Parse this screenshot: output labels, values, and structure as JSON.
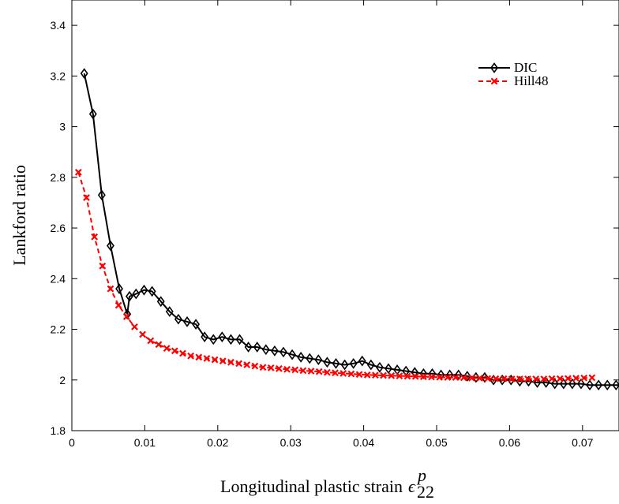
{
  "chart_data": {
    "type": "line",
    "xlabel": "Longitudinal plastic strain",
    "xlabel_symbol": "ϵ",
    "xlabel_superscript": "p",
    "xlabel_subscript": "22",
    "ylabel": "Lankford ratio",
    "xlim": [
      0,
      0.075
    ],
    "ylim": [
      1.8,
      3.5
    ],
    "x_ticks": [
      0,
      0.01,
      0.02,
      0.03,
      0.04,
      0.05,
      0.06,
      0.07
    ],
    "x_tick_labels": [
      "0",
      "0.01",
      "0.02",
      "0.03",
      "0.04",
      "0.05",
      "0.06",
      "0.07"
    ],
    "y_ticks": [
      1.8,
      2.0,
      2.2,
      2.4,
      2.6,
      2.8,
      3.0,
      3.2,
      3.4
    ],
    "y_tick_labels": [
      "1.8",
      "2",
      "2.2",
      "2.4",
      "2.6",
      "2.8",
      "3",
      "3.2",
      "3.4"
    ],
    "grid": false,
    "legend_position": "top-right",
    "series": [
      {
        "name": "DIC",
        "color": "#000000",
        "line_style": "solid",
        "marker": "diamond",
        "x": [
          0.0017,
          0.0029,
          0.0041,
          0.0053,
          0.0065,
          0.0076,
          0.0079,
          0.0088,
          0.0099,
          0.011,
          0.0122,
          0.0134,
          0.0146,
          0.0158,
          0.017,
          0.0182,
          0.0194,
          0.0206,
          0.0218,
          0.023,
          0.0242,
          0.0254,
          0.0266,
          0.0278,
          0.029,
          0.0302,
          0.0314,
          0.0326,
          0.0338,
          0.035,
          0.0362,
          0.0374,
          0.0386,
          0.0398,
          0.041,
          0.0422,
          0.0434,
          0.0446,
          0.0458,
          0.047,
          0.0482,
          0.0494,
          0.0506,
          0.0518,
          0.053,
          0.0542,
          0.0554,
          0.0566,
          0.0578,
          0.059,
          0.0602,
          0.0614,
          0.0626,
          0.0638,
          0.065,
          0.0662,
          0.0674,
          0.0686,
          0.0698,
          0.071,
          0.0722,
          0.0734,
          0.0746,
          0.0755
        ],
        "y": [
          3.21,
          3.05,
          2.73,
          2.53,
          2.36,
          2.26,
          2.33,
          2.34,
          2.355,
          2.35,
          2.31,
          2.27,
          2.24,
          2.23,
          2.22,
          2.17,
          2.16,
          2.17,
          2.16,
          2.16,
          2.13,
          2.13,
          2.12,
          2.115,
          2.11,
          2.1,
          2.09,
          2.085,
          2.08,
          2.07,
          2.065,
          2.06,
          2.065,
          2.075,
          2.06,
          2.05,
          2.045,
          2.04,
          2.035,
          2.03,
          2.025,
          2.025,
          2.02,
          2.02,
          2.02,
          2.015,
          2.01,
          2.01,
          2.0,
          2.0,
          2.0,
          1.995,
          1.995,
          1.99,
          1.99,
          1.985,
          1.985,
          1.985,
          1.985,
          1.98,
          1.98,
          1.98,
          1.98,
          1.98
        ]
      },
      {
        "name": "Hill48",
        "color": "#ff0000",
        "line_style": "dashed",
        "marker": "x",
        "x": [
          0.0009,
          0.002,
          0.0031,
          0.0042,
          0.0053,
          0.0064,
          0.0075,
          0.0086,
          0.0097,
          0.0108,
          0.0119,
          0.013,
          0.0141,
          0.0152,
          0.0163,
          0.0174,
          0.0185,
          0.0196,
          0.0207,
          0.0218,
          0.0229,
          0.024,
          0.0251,
          0.0262,
          0.0273,
          0.0284,
          0.0295,
          0.0306,
          0.0317,
          0.0328,
          0.0339,
          0.035,
          0.0361,
          0.0372,
          0.0383,
          0.0394,
          0.0405,
          0.0416,
          0.0427,
          0.0438,
          0.0449,
          0.046,
          0.0471,
          0.0482,
          0.0493,
          0.0504,
          0.0515,
          0.0526,
          0.0537,
          0.0548,
          0.0559,
          0.057,
          0.0581,
          0.0592,
          0.0603,
          0.0614,
          0.0625,
          0.0636,
          0.0647,
          0.0658,
          0.0669,
          0.068,
          0.0691,
          0.0702,
          0.0713
        ],
        "y": [
          2.82,
          2.72,
          2.565,
          2.45,
          2.36,
          2.295,
          2.25,
          2.21,
          2.18,
          2.155,
          2.14,
          2.125,
          2.115,
          2.105,
          2.095,
          2.09,
          2.085,
          2.08,
          2.075,
          2.07,
          2.065,
          2.06,
          2.055,
          2.05,
          2.048,
          2.045,
          2.042,
          2.04,
          2.037,
          2.035,
          2.033,
          2.03,
          2.028,
          2.026,
          2.024,
          2.022,
          2.02,
          2.019,
          2.018,
          2.017,
          2.016,
          2.015,
          2.014,
          2.013,
          2.012,
          2.011,
          2.01,
          2.01,
          2.009,
          2.008,
          2.007,
          2.006,
          2.005,
          2.005,
          2.004,
          2.004,
          2.004,
          2.004,
          2.004,
          2.005,
          2.005,
          2.006,
          2.007,
          2.008,
          2.009
        ]
      }
    ]
  }
}
